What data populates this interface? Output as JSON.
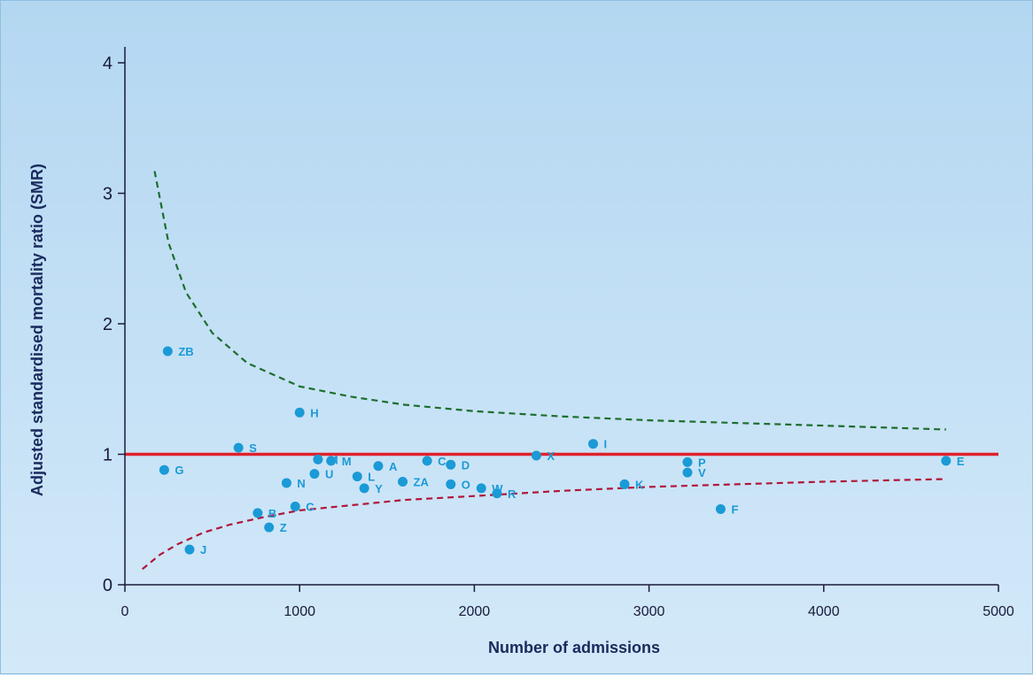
{
  "chart_data": {
    "type": "scatter",
    "title": "",
    "xlabel": "Number of admissions",
    "ylabel": "Adjusted standardised mortality ratio (SMR)",
    "xlim": [
      0,
      5000
    ],
    "ylim": [
      0,
      4
    ],
    "x_ticks": [
      0,
      1000,
      2000,
      3000,
      4000,
      5000
    ],
    "y_ticks": [
      0,
      1,
      2,
      3,
      4
    ],
    "grid": false,
    "point_color": "#1a9ad6",
    "label_color": "#1a9ad6",
    "points": [
      {
        "label": "ZB",
        "x": 245,
        "y": 1.79
      },
      {
        "label": "G",
        "x": 225,
        "y": 0.88
      },
      {
        "label": "J",
        "x": 370,
        "y": 0.27
      },
      {
        "label": "S",
        "x": 650,
        "y": 1.05
      },
      {
        "label": "B",
        "x": 760,
        "y": 0.55
      },
      {
        "label": "Z",
        "x": 825,
        "y": 0.44
      },
      {
        "label": "N",
        "x": 925,
        "y": 0.78
      },
      {
        "label": "C",
        "x": 975,
        "y": 0.6
      },
      {
        "label": "H",
        "x": 1000,
        "y": 1.32
      },
      {
        "label": "U",
        "x": 1085,
        "y": 0.85
      },
      {
        "label": "M",
        "x": 1105,
        "y": 0.96
      },
      {
        "label": "M",
        "x": 1180,
        "y": 0.95
      },
      {
        "label": "L",
        "x": 1330,
        "y": 0.83
      },
      {
        "label": "Y",
        "x": 1370,
        "y": 0.74
      },
      {
        "label": "A",
        "x": 1450,
        "y": 0.91
      },
      {
        "label": "ZA",
        "x": 1590,
        "y": 0.79
      },
      {
        "label": "C",
        "x": 1730,
        "y": 0.95
      },
      {
        "label": "D",
        "x": 1865,
        "y": 0.92
      },
      {
        "label": "O",
        "x": 1865,
        "y": 0.77
      },
      {
        "label": "W",
        "x": 2040,
        "y": 0.74
      },
      {
        "label": "R",
        "x": 2130,
        "y": 0.7
      },
      {
        "label": "X",
        "x": 2355,
        "y": 0.99
      },
      {
        "label": "I",
        "x": 2680,
        "y": 1.08
      },
      {
        "label": "K",
        "x": 2860,
        "y": 0.77
      },
      {
        "label": "P",
        "x": 3220,
        "y": 0.94
      },
      {
        "label": "V",
        "x": 3220,
        "y": 0.86
      },
      {
        "label": "F",
        "x": 3410,
        "y": 0.58
      },
      {
        "label": "E",
        "x": 4700,
        "y": 0.95
      }
    ],
    "reference_line": {
      "y": 1.0,
      "color": "#e0222c"
    },
    "upper_limit": {
      "color": "#1d6e2e",
      "style": "dashed",
      "points": [
        [
          170,
          3.17
        ],
        [
          250,
          2.62
        ],
        [
          350,
          2.24
        ],
        [
          500,
          1.93
        ],
        [
          700,
          1.7
        ],
        [
          1000,
          1.52
        ],
        [
          1300,
          1.44
        ],
        [
          1600,
          1.38
        ],
        [
          2000,
          1.33
        ],
        [
          2500,
          1.29
        ],
        [
          3000,
          1.26
        ],
        [
          3500,
          1.24
        ],
        [
          4000,
          1.22
        ],
        [
          4700,
          1.19
        ]
      ]
    },
    "lower_limit": {
      "color": "#b0163a",
      "style": "dashed",
      "points": [
        [
          100,
          0.12
        ],
        [
          200,
          0.23
        ],
        [
          300,
          0.31
        ],
        [
          450,
          0.4
        ],
        [
          600,
          0.46
        ],
        [
          800,
          0.52
        ],
        [
          1000,
          0.57
        ],
        [
          1300,
          0.61
        ],
        [
          1600,
          0.65
        ],
        [
          2000,
          0.68
        ],
        [
          2500,
          0.72
        ],
        [
          3000,
          0.75
        ],
        [
          3500,
          0.77
        ],
        [
          4000,
          0.79
        ],
        [
          4700,
          0.81
        ]
      ]
    }
  }
}
